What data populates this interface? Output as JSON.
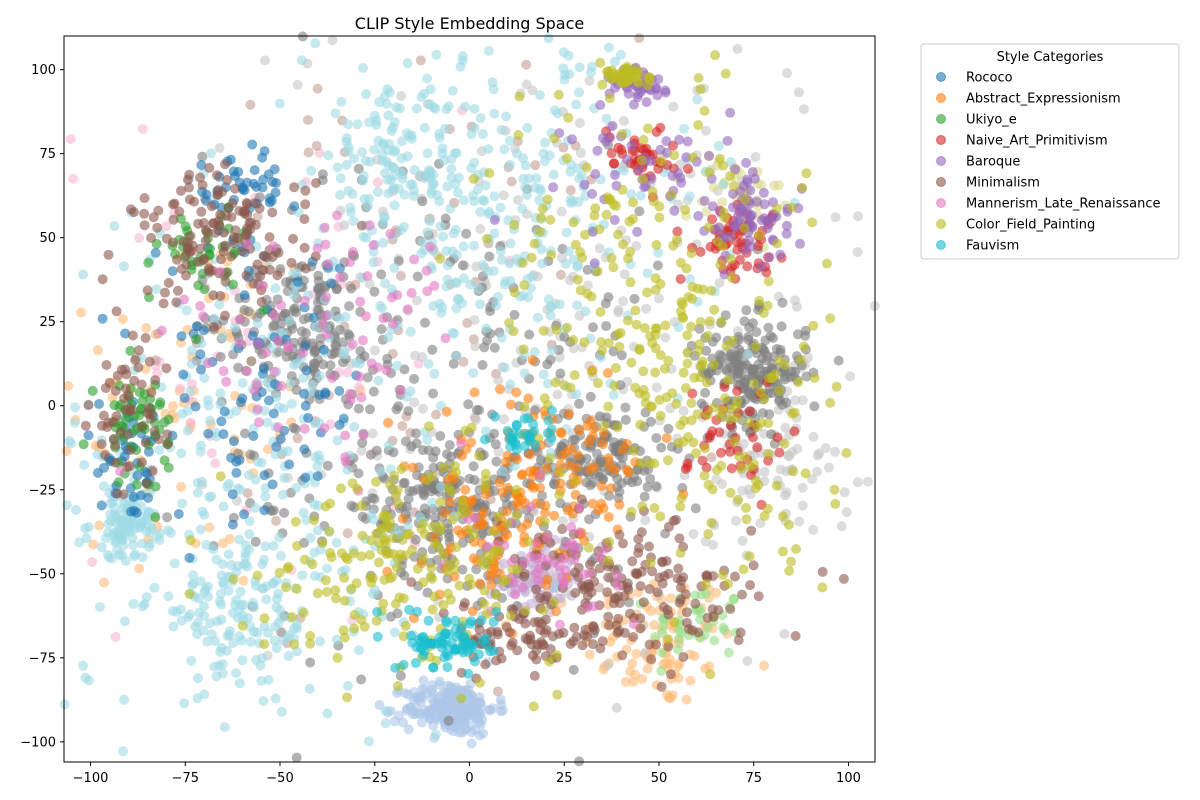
{
  "chart_data": {
    "type": "scatter",
    "title": "CLIP Style Embedding Space",
    "xlabel": "",
    "ylabel": "",
    "xlim": [
      -107,
      107
    ],
    "ylim": [
      -106,
      110
    ],
    "xticks": [
      -100,
      -75,
      -50,
      -25,
      0,
      25,
      50,
      75,
      100
    ],
    "yticks": [
      -100,
      -75,
      -50,
      -25,
      0,
      25,
      50,
      75,
      100
    ],
    "grid": false,
    "legend": {
      "title": "Style Categories",
      "placement": "outside-right-top"
    },
    "series": [
      {
        "name": "Rococo",
        "color": "#1f77b4",
        "clusters": [
          [
            -57,
            5,
            15,
            22,
            90
          ],
          [
            -60,
            65,
            6,
            6,
            40
          ],
          [
            -88,
            -18,
            5,
            8,
            40
          ]
        ]
      },
      {
        "name": "Abstract_Expressionism",
        "color": "#ff7f0e",
        "clusters": [
          [
            20,
            -20,
            14,
            12,
            120
          ],
          [
            5,
            -40,
            8,
            10,
            60
          ]
        ]
      },
      {
        "name": "Ukiyo_e",
        "color": "#2ca02c",
        "clusters": [
          [
            -88,
            -5,
            5,
            8,
            60
          ],
          [
            -70,
            45,
            6,
            8,
            40
          ]
        ]
      },
      {
        "name": "Naive_Art_Primitivism",
        "color": "#d62728",
        "clusters": [
          [
            70,
            50,
            6,
            5,
            60
          ],
          [
            45,
            75,
            5,
            4,
            40
          ],
          [
            70,
            -10,
            6,
            10,
            40
          ]
        ]
      },
      {
        "name": "Baroque",
        "color": "#9467bd",
        "clusters": [
          [
            75,
            55,
            6,
            6,
            60
          ],
          [
            45,
            95,
            4,
            3,
            40
          ],
          [
            50,
            70,
            12,
            10,
            60
          ]
        ]
      },
      {
        "name": "Minimalism",
        "color": "#8c564b",
        "clusters": [
          [
            -65,
            50,
            12,
            10,
            140
          ],
          [
            -90,
            -5,
            5,
            12,
            60
          ],
          [
            40,
            -55,
            18,
            10,
            180
          ],
          [
            15,
            -70,
            10,
            5,
            60
          ]
        ]
      },
      {
        "name": "Mannerism_Late_Renaissance",
        "color": "#e377c2",
        "clusters": [
          [
            -40,
            20,
            20,
            20,
            80
          ],
          [
            20,
            -45,
            10,
            8,
            50
          ]
        ]
      },
      {
        "name": "Color_Field_Painting",
        "color": "#bcbd22",
        "clusters": [
          [
            -15,
            -45,
            20,
            15,
            200
          ],
          [
            45,
            35,
            20,
            30,
            200
          ],
          [
            65,
            -10,
            15,
            25,
            120
          ],
          [
            42,
            98,
            3,
            2,
            40
          ]
        ]
      },
      {
        "name": "Fauvism",
        "color": "#17becf",
        "clusters": [
          [
            -5,
            -70,
            6,
            4,
            80
          ],
          [
            15,
            -8,
            4,
            4,
            30
          ]
        ]
      }
    ],
    "extra_groups": [
      {
        "color": "#ffbb78",
        "clusters": [
          [
            50,
            -70,
            10,
            10,
            100
          ],
          [
            -75,
            0,
            20,
            30,
            80
          ]
        ]
      },
      {
        "color": "#98df8a",
        "clusters": [
          [
            60,
            -65,
            6,
            6,
            40
          ]
        ]
      },
      {
        "color": "#c5b0d5",
        "clusters": [
          [
            18,
            -52,
            5,
            5,
            100
          ]
        ]
      },
      {
        "color": "#f7b6d2",
        "clusters": [
          [
            -60,
            10,
            30,
            40,
            60
          ]
        ]
      },
      {
        "color": "#c49c94",
        "clusters": [
          [
            -20,
            30,
            30,
            40,
            80
          ]
        ]
      },
      {
        "color": "#c7c7c7",
        "clusters": [
          [
            30,
            20,
            40,
            50,
            250
          ],
          [
            80,
            -15,
            10,
            12,
            80
          ]
        ]
      },
      {
        "color": "#dbdb8d",
        "clusters": [
          [
            70,
            60,
            6,
            8,
            40
          ]
        ]
      },
      {
        "color": "#aec7e8",
        "clusters": [
          [
            -5,
            -90,
            6,
            4,
            220
          ]
        ]
      },
      {
        "color": "#7f7f7f",
        "clusters": [
          [
            -45,
            25,
            10,
            10,
            150
          ],
          [
            75,
            10,
            7,
            8,
            200
          ],
          [
            35,
            -15,
            8,
            8,
            140
          ],
          [
            -5,
            -30,
            12,
            12,
            200
          ],
          [
            -10,
            0,
            30,
            40,
            250
          ]
        ]
      },
      {
        "color": "#9edae5",
        "clusters": [
          [
            -55,
            -20,
            30,
            40,
            300
          ],
          [
            10,
            55,
            25,
            30,
            300
          ],
          [
            -90,
            -35,
            5,
            5,
            100
          ],
          [
            -60,
            -60,
            12,
            10,
            120
          ],
          [
            -20,
            70,
            10,
            12,
            120
          ]
        ]
      }
    ]
  }
}
